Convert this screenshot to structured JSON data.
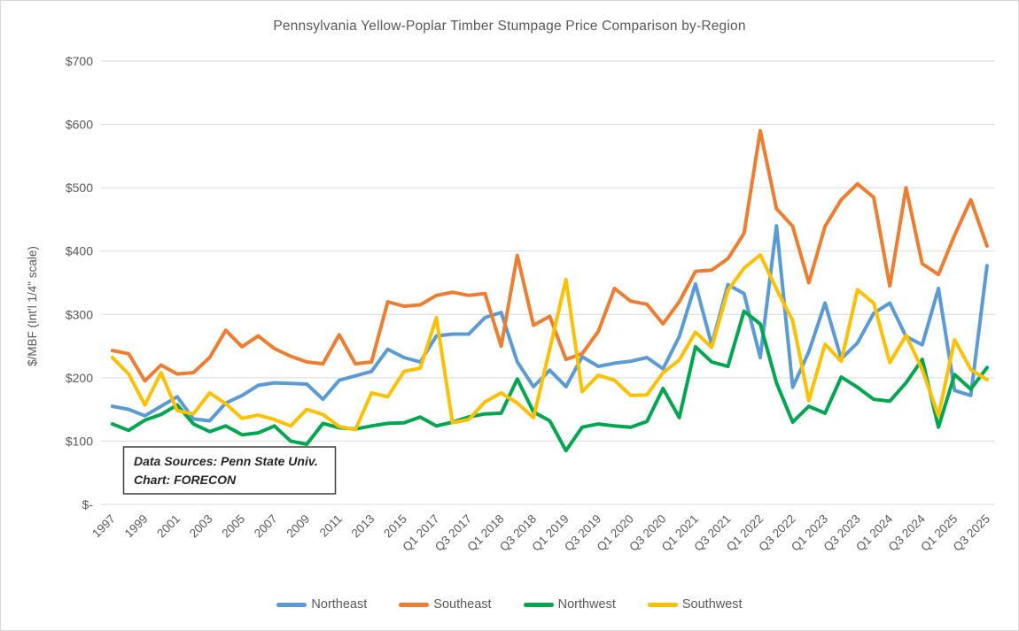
{
  "window": {
    "background": "#ffffff",
    "frame_border_color": "#d9d9d9",
    "text_color": "#595959",
    "gridline_color": "#d9d9d9"
  },
  "chart_data": {
    "type": "line",
    "title": "Pennsylvania Yellow-Poplar Timber Stumpage Price Comparison by-Region",
    "xlabel": "",
    "ylabel": "$/MBF (Int'l 1/4\" scale)",
    "ylim": [
      0,
      700
    ],
    "ytick_interval": 100,
    "ytick_labels": [
      "$-",
      "$100",
      "$200",
      "$300",
      "$400",
      "$500",
      "$600",
      "$700"
    ],
    "grid": true,
    "legend_position": "bottom",
    "xtick_label_every": 2,
    "categories": [
      "1997",
      "1998",
      "1999",
      "2000",
      "2001",
      "2002",
      "2003",
      "2004",
      "2005",
      "2006",
      "2007",
      "2008",
      "2009",
      "2010",
      "2011",
      "2012",
      "2013",
      "2014",
      "2015",
      "2016",
      "Q1 2017",
      "Q2 2017",
      "Q3 2017",
      "Q4 2017",
      "Q1 2018",
      "Q2 2018",
      "Q3 2018",
      "Q4 2018",
      "Q1 2019",
      "Q2 2019",
      "Q3 2019",
      "Q4 2019",
      "Q1 2020",
      "Q2 2020",
      "Q3 2020",
      "Q4 2020",
      "Q1 2021",
      "Q2 2021",
      "Q3 2021",
      "Q4 2021",
      "Q1 2022",
      "Q2 2022",
      "Q3 2022",
      "Q4 2022",
      "Q1 2023",
      "Q2 2023",
      "Q3 2023",
      "Q4 2023",
      "Q1 2024",
      "Q2 2024",
      "Q3 2024",
      "Q4 2024",
      "Q1 2025",
      "Q2 2025",
      "Q3 2025"
    ],
    "series": [
      {
        "name": "Northeast",
        "color": "#5B9BD5",
        "values": [
          155,
          150,
          140,
          155,
          170,
          135,
          132,
          160,
          172,
          188,
          192,
          191,
          190,
          166,
          196,
          203,
          210,
          245,
          232,
          225,
          266,
          269,
          269,
          295,
          303,
          225,
          186,
          212,
          186,
          233,
          218,
          223,
          226,
          232,
          214,
          265,
          348,
          252,
          347,
          333,
          232,
          440,
          185,
          241,
          318,
          230,
          255,
          302,
          318,
          265,
          252,
          341,
          180,
          172,
          377
        ]
      },
      {
        "name": "Southeast",
        "color": "#ED7D31",
        "values": [
          243,
          238,
          195,
          220,
          206,
          208,
          232,
          275,
          249,
          266,
          246,
          234,
          225,
          222,
          268,
          222,
          225,
          320,
          313,
          315,
          330,
          335,
          330,
          333,
          250,
          393,
          283,
          297,
          229,
          238,
          273,
          341,
          321,
          316,
          285,
          320,
          368,
          370,
          388,
          428,
          590,
          467,
          439,
          350,
          439,
          481,
          506,
          485,
          345,
          500,
          380,
          363,
          425,
          481,
          408
        ]
      },
      {
        "name": "Northwest",
        "color": "#00A550",
        "values": [
          127,
          117,
          133,
          142,
          157,
          127,
          115,
          124,
          110,
          113,
          124,
          100,
          95,
          128,
          121,
          119,
          124,
          128,
          129,
          138,
          124,
          130,
          138,
          143,
          144,
          198,
          146,
          132,
          85,
          122,
          127,
          124,
          122,
          131,
          183,
          137,
          249,
          225,
          218,
          305,
          285,
          192,
          130,
          155,
          144,
          201,
          185,
          166,
          163,
          192,
          229,
          122,
          205,
          182,
          216
        ]
      },
      {
        "name": "Southwest",
        "color": "#FFC000",
        "values": [
          232,
          206,
          157,
          208,
          148,
          143,
          176,
          159,
          136,
          141,
          134,
          124,
          150,
          142,
          123,
          118,
          176,
          170,
          210,
          215,
          295,
          129,
          134,
          162,
          176,
          160,
          137,
          245,
          355,
          178,
          204,
          196,
          172,
          173,
          208,
          228,
          272,
          248,
          338,
          373,
          394,
          340,
          290,
          164,
          253,
          226,
          339,
          318,
          224,
          267,
          213,
          140,
          260,
          213,
          197
        ]
      }
    ],
    "annotation": {
      "lines": [
        "Data Sources: Penn State Univ.",
        "Chart: FORECON"
      ]
    }
  }
}
